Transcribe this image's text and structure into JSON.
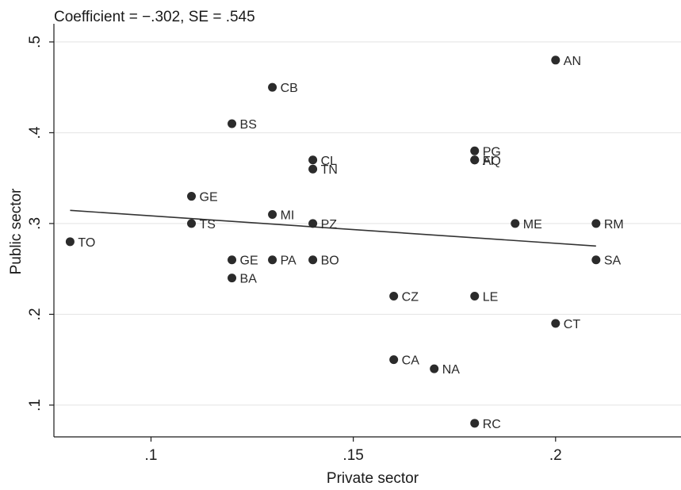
{
  "chart_data": {
    "type": "scatter",
    "title": "Coefficient = −.302, SE = .545",
    "xlabel": "Private sector",
    "ylabel": "Public sector",
    "xlim": [
      0.076,
      0.231
    ],
    "ylim": [
      0.065,
      0.52
    ],
    "xticks": [
      {
        "value": 0.1,
        "label": ".1"
      },
      {
        "value": 0.15,
        "label": ".15"
      },
      {
        "value": 0.2,
        "label": ".2"
      }
    ],
    "yticks": [
      {
        "value": 0.1,
        "label": ".1"
      },
      {
        "value": 0.2,
        "label": ".2"
      },
      {
        "value": 0.3,
        "label": ".3"
      },
      {
        "value": 0.4,
        "label": ".4"
      },
      {
        "value": 0.5,
        "label": ".5"
      }
    ],
    "grid": "horizontal",
    "points": [
      {
        "label": "TO",
        "x": 0.08,
        "y": 0.28
      },
      {
        "label": "GE",
        "x": 0.11,
        "y": 0.33
      },
      {
        "label": "TS",
        "x": 0.11,
        "y": 0.3
      },
      {
        "label": "BS",
        "x": 0.12,
        "y": 0.41
      },
      {
        "label": "GE",
        "x": 0.12,
        "y": 0.26
      },
      {
        "label": "BA",
        "x": 0.12,
        "y": 0.24
      },
      {
        "label": "CB",
        "x": 0.13,
        "y": 0.45
      },
      {
        "label": "MI",
        "x": 0.13,
        "y": 0.31
      },
      {
        "label": "PA",
        "x": 0.13,
        "y": 0.26
      },
      {
        "label": "CL",
        "x": 0.14,
        "y": 0.37
      },
      {
        "label": "TN",
        "x": 0.14,
        "y": 0.36
      },
      {
        "label": "PZ",
        "x": 0.14,
        "y": 0.3
      },
      {
        "label": "BO",
        "x": 0.14,
        "y": 0.26
      },
      {
        "label": "CZ",
        "x": 0.16,
        "y": 0.22
      },
      {
        "label": "CA",
        "x": 0.16,
        "y": 0.15
      },
      {
        "label": "NA",
        "x": 0.17,
        "y": 0.14
      },
      {
        "label": "PG",
        "x": 0.18,
        "y": 0.38
      },
      {
        "label": "FI",
        "x": 0.18,
        "y": 0.37
      },
      {
        "label": "AQ",
        "x": 0.18,
        "y": 0.37
      },
      {
        "label": "LE",
        "x": 0.18,
        "y": 0.22
      },
      {
        "label": "RC",
        "x": 0.18,
        "y": 0.08
      },
      {
        "label": "ME",
        "x": 0.19,
        "y": 0.3
      },
      {
        "label": "AN",
        "x": 0.2,
        "y": 0.48
      },
      {
        "label": "CT",
        "x": 0.2,
        "y": 0.19
      },
      {
        "label": "RM",
        "x": 0.21,
        "y": 0.3
      },
      {
        "label": "SA",
        "x": 0.21,
        "y": 0.26
      }
    ],
    "fit_line": {
      "x": [
        0.08,
        0.21
      ],
      "y": [
        0.3145,
        0.2752
      ]
    },
    "colors": {
      "marker": "#2b2b2b",
      "line": "#333333",
      "grid": "#e3e3e3",
      "axis": "#1a1a1a"
    }
  }
}
